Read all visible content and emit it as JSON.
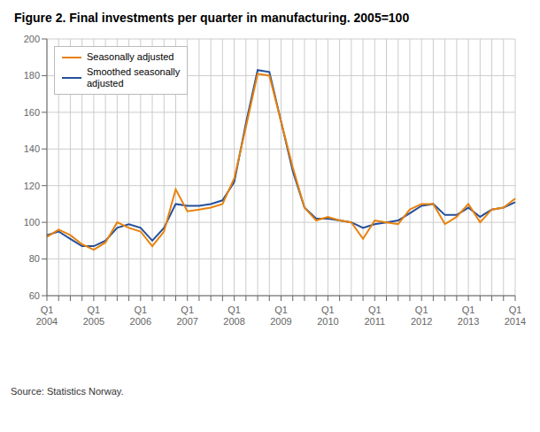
{
  "chart_data": {
    "type": "line",
    "title": "Figure 2. Final investments per quarter in manufacturing. 2005=100",
    "annotations": [
      "Source: Statistics Norway."
    ],
    "categories": [
      "Q1\n2004",
      null,
      null,
      null,
      "Q1\n2005",
      null,
      null,
      null,
      "Q1\n2006",
      null,
      null,
      null,
      "Q1\n2007",
      null,
      null,
      null,
      "Q1\n2008",
      null,
      null,
      null,
      "Q1\n2009",
      null,
      null,
      null,
      "Q1\n2010",
      null,
      null,
      null,
      "Q1\n2011",
      null,
      null,
      null,
      "Q1\n2012",
      null,
      null,
      null,
      "Q1\n2013",
      null,
      null,
      null,
      "Q1\n2014"
    ],
    "series": [
      {
        "name": "Seasonally adjusted",
        "color": "#E8820C",
        "values": [
          92,
          96,
          93,
          88,
          85,
          89,
          100,
          97,
          95,
          87,
          95,
          118,
          106,
          107,
          108,
          110,
          124,
          152,
          181,
          180,
          155,
          130,
          108,
          101,
          103,
          101,
          100,
          91,
          101,
          100,
          99,
          107,
          110,
          110,
          99,
          103,
          110,
          100,
          107,
          108,
          113
        ]
      },
      {
        "name": "Smoothed seasonally\nadjusted",
        "color": "#254F9B",
        "values": [
          93,
          95,
          91,
          87,
          87,
          90,
          97,
          99,
          97,
          90,
          97,
          110,
          109,
          109,
          110,
          112,
          122,
          154,
          183,
          182,
          155,
          128,
          108,
          102,
          102,
          101,
          100,
          97,
          99,
          100,
          101,
          105,
          109,
          110,
          104,
          104,
          108,
          103,
          107,
          108,
          111
        ]
      }
    ],
    "ylim": [
      60,
      200
    ],
    "yticks": [
      60,
      80,
      100,
      120,
      140,
      160,
      180,
      200
    ],
    "grid": true,
    "legend": "upper left"
  }
}
